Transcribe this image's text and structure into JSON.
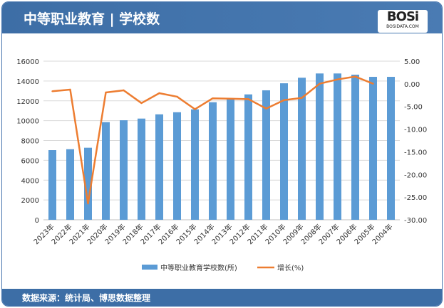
{
  "header": {
    "title": "中等职业教育 | 学校数",
    "logo_text": "BOSi",
    "logo_sub": "BOSIDATA.COM"
  },
  "footer": {
    "source": "数据来源：统计局、博思数据整理"
  },
  "colors": {
    "bar": "#5b9bd5",
    "line": "#ed7d31",
    "header": "#3d6ea6"
  },
  "chart_data": {
    "type": "bar+line",
    "categories": [
      "2023年",
      "2022年",
      "2021年",
      "2020年",
      "2019年",
      "2018年",
      "2017年",
      "2016年",
      "2015年",
      "2014年",
      "2013年",
      "2012年",
      "2011年",
      "2010年",
      "2009年",
      "2008年",
      "2007年",
      "2006年",
      "2005年",
      "2004年"
    ],
    "series": [
      {
        "name": "中等职业教育学校数(所)",
        "type": "bar",
        "axis": "left",
        "values": [
          7030,
          7120,
          7270,
          9850,
          10040,
          10210,
          10640,
          10850,
          11140,
          11860,
          12170,
          12650,
          13060,
          13770,
          14330,
          14760,
          14760,
          14640,
          14420,
          14420
        ]
      },
      {
        "name": "增长(%)",
        "type": "line",
        "axis": "right",
        "values": [
          -1.64,
          -1.27,
          -26.4,
          -1.9,
          -1.43,
          -4.25,
          -2.06,
          -2.84,
          -5.6,
          -3.2,
          -3.27,
          -3.37,
          -5.46,
          -3.6,
          -3.1,
          0.03,
          0.97,
          1.6,
          0.03,
          null
        ]
      }
    ],
    "left_axis": {
      "ylim": [
        0,
        16000
      ],
      "ticks": [
        "0",
        "2000",
        "4000",
        "6000",
        "8000",
        "10000",
        "12000",
        "14000",
        "16000"
      ]
    },
    "right_axis": {
      "ylim": [
        -30,
        5
      ],
      "ticks": [
        "-30.00",
        "-25.00",
        "-20.00",
        "-15.00",
        "-10.00",
        "-5.00",
        "0.00",
        "5.00"
      ]
    },
    "grid": true,
    "legend": "bottom"
  }
}
